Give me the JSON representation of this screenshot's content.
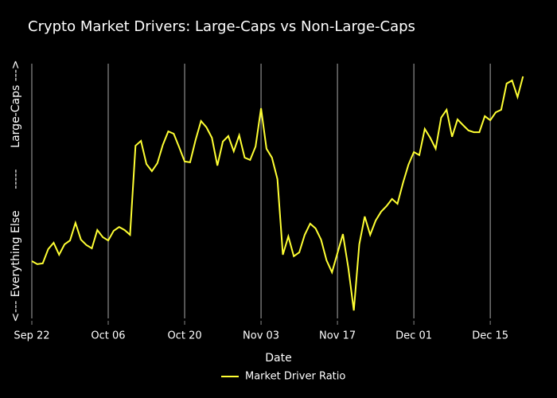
{
  "chart_data": {
    "type": "line",
    "title": "Crypto Market Drivers: Large-Caps vs Non-Large-Caps",
    "x_label": "Date",
    "y_label": "<--- Everything Else      -----      Large-Caps --->",
    "x": [
      0,
      1,
      2,
      3,
      4,
      5,
      6,
      7,
      8,
      9,
      10,
      11,
      12,
      13,
      14,
      15,
      16,
      17,
      18,
      19,
      20,
      21,
      22,
      23,
      24,
      25,
      26,
      27,
      28,
      29,
      30,
      31,
      32,
      33,
      34,
      35,
      36,
      37,
      38,
      39,
      40,
      41,
      42,
      43,
      44,
      45,
      46,
      47,
      48,
      49,
      50,
      51,
      52,
      53,
      54,
      55,
      56,
      57,
      58,
      59,
      60,
      61,
      62,
      63,
      64,
      65,
      66,
      67,
      68,
      69,
      70,
      71,
      72,
      73,
      74,
      75,
      76,
      77,
      78,
      79,
      80,
      81,
      82,
      83,
      84,
      85,
      86,
      87,
      88,
      89,
      90
    ],
    "series": [
      {
        "name": "Market Driver Ratio",
        "color": "#ffff33",
        "values": [
          22.5,
          21.3,
          21.6,
          27.2,
          29.7,
          25,
          29.1,
          30.6,
          37.5,
          30.9,
          28.8,
          27.5,
          34.7,
          31.9,
          30.6,
          34.4,
          35.9,
          34.7,
          32.8,
          67.8,
          69.7,
          60.6,
          57.8,
          60.9,
          68.1,
          73.4,
          72.5,
          67.2,
          61.6,
          61.3,
          70,
          77.5,
          75,
          70.9,
          60,
          69.4,
          71.6,
          65.6,
          71.9,
          63.1,
          62.2,
          67.5,
          82.5,
          66.6,
          63.1,
          54.7,
          25,
          32.2,
          24.4,
          25.9,
          32.8,
          37.2,
          35.3,
          30.9,
          22.8,
          18.1,
          25.6,
          33.1,
          19.7,
          3.1,
          29.1,
          40,
          32.8,
          38.4,
          41.9,
          44.1,
          46.9,
          45,
          53.1,
          60.3,
          65.3,
          64.1,
          74.4,
          70.9,
          66.6,
          78.8,
          81.9,
          71.3,
          78.1,
          75.9,
          73.8,
          73.1,
          73.1,
          79.4,
          77.8,
          80.9,
          81.9,
          92.2,
          93.4,
          86.9,
          95
        ]
      }
    ],
    "xlim": [
      -1.5,
      92
    ],
    "ylim": [
      0,
      100
    ],
    "xticks": [
      {
        "value": 0,
        "label": "Sep 22"
      },
      {
        "value": 14,
        "label": "Oct 06"
      },
      {
        "value": 28,
        "label": "Oct 20"
      },
      {
        "value": 42,
        "label": "Nov 03"
      },
      {
        "value": 56,
        "label": "Nov 17"
      },
      {
        "value": 70,
        "label": "Dec 01"
      },
      {
        "value": 84,
        "label": "Dec 15"
      }
    ],
    "grid": true,
    "legend": "bottom"
  }
}
